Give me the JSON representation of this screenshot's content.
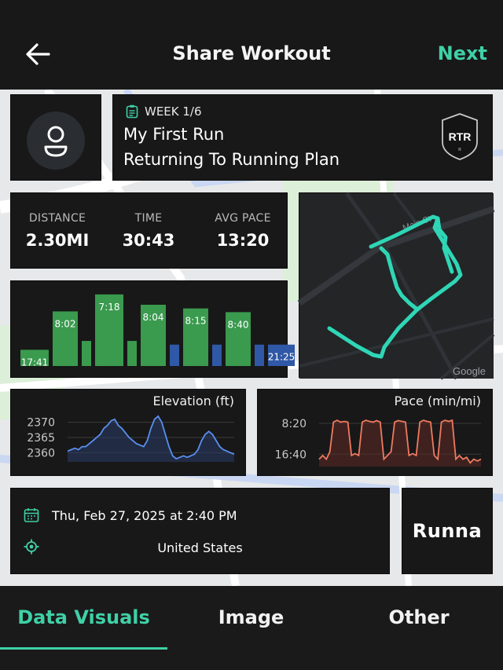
{
  "header": {
    "title": "Share Workout",
    "next_label": "Next",
    "back_icon": "arrow-left-icon"
  },
  "plan_card": {
    "week_label": "WEEK 1/6",
    "workout_name": "My First Run",
    "plan_name": "Returning To Running Plan",
    "badge_text": "RTR"
  },
  "stats": {
    "distance_label": "DISTANCE",
    "distance_value": "2.30MI",
    "time_label": "TIME",
    "time_value": "30:43",
    "pace_label": "AVG PACE",
    "pace_value": "13:20"
  },
  "chart_data": [
    {
      "type": "bar",
      "title": "",
      "bars": [
        {
          "label": "17:41",
          "color": "#3a9a4e",
          "level": 0.22
        },
        {
          "label": "8:02",
          "color": "#3a9a4e",
          "level": 0.74
        },
        {
          "label": "",
          "color": "#3a9a4e",
          "level": 0.34
        },
        {
          "label": "7:18",
          "color": "#3a9a4e",
          "level": 0.97
        },
        {
          "label": "",
          "color": "#3a9a4e",
          "level": 0.34
        },
        {
          "label": "8:04",
          "color": "#3a9a4e",
          "level": 0.83
        },
        {
          "label": "",
          "color": "#2f58a6",
          "level": 0.29
        },
        {
          "label": "8:15",
          "color": "#3a9a4e",
          "level": 0.78
        },
        {
          "label": "",
          "color": "#2f58a6",
          "level": 0.29
        },
        {
          "label": "8:40",
          "color": "#3a9a4e",
          "level": 0.73
        },
        {
          "label": "",
          "color": "#2f58a6",
          "level": 0.29
        },
        {
          "label": "21:25",
          "color": "#2f58a6",
          "level": 0.29
        }
      ]
    },
    {
      "type": "line",
      "title": "Elevation (ft)",
      "yticks": [
        "2370",
        "2365",
        "2360"
      ],
      "ylim": [
        2357,
        2373
      ],
      "color": "#5a8ef0",
      "y": [
        2360.5,
        2361,
        2361.5,
        2361,
        2362,
        2362,
        2363,
        2364,
        2365,
        2366,
        2368,
        2369,
        2370.5,
        2371,
        2369,
        2368,
        2366.5,
        2365,
        2364,
        2363,
        2362.5,
        2362,
        2364,
        2368,
        2371,
        2372,
        2370,
        2366,
        2362,
        2359,
        2358,
        2358.5,
        2359,
        2358.5,
        2359,
        2359.5,
        2361,
        2364,
        2366,
        2367,
        2366,
        2364,
        2362,
        2361,
        2360.5,
        2360,
        2359.5
      ]
    },
    {
      "type": "line",
      "title": "Pace (min/mi)",
      "yticks": [
        "8:20",
        "16:40"
      ],
      "color": "#f07a60",
      "y": [
        18,
        17,
        18,
        16,
        8,
        7.5,
        8,
        7.8,
        8,
        17,
        16.5,
        17,
        8,
        7.5,
        7.8,
        8,
        7.6,
        8,
        18,
        17,
        16,
        8,
        7.6,
        7.8,
        8,
        17,
        16.5,
        17,
        8,
        7.5,
        7.8,
        8,
        17,
        18,
        8,
        7.5,
        7.8,
        7.5,
        18,
        17,
        18,
        17.5,
        19,
        18,
        18.5,
        18
      ]
    }
  ],
  "map": {
    "street_label": "Main St",
    "attribution": "Google",
    "route_color": "#2fd6b6"
  },
  "info": {
    "date": "Thu, Feb 27, 2025 at 2:40 PM",
    "location": "United States",
    "brand": "Runna"
  },
  "tabs": [
    {
      "label": "Data Visuals",
      "active": true
    },
    {
      "label": "Image",
      "active": false
    },
    {
      "label": "Other",
      "active": false
    }
  ],
  "colors": {
    "accent": "#3fd0a6",
    "card": "#181818"
  }
}
